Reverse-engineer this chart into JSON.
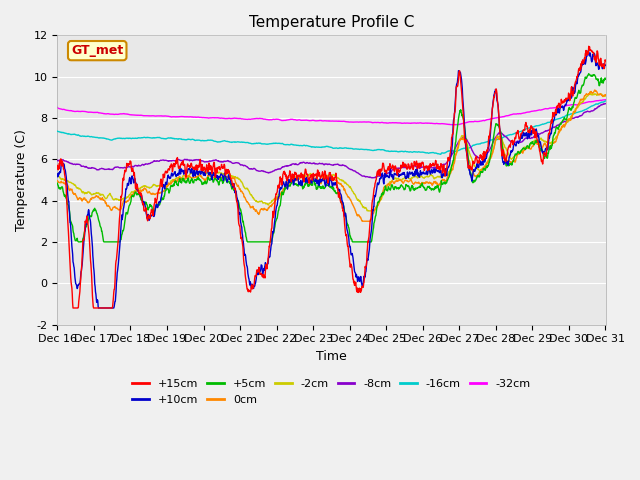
{
  "title": "Temperature Profile C",
  "xlabel": "Time",
  "ylabel": "Temperature (C)",
  "ylim": [
    -2,
    12
  ],
  "xlim_days": [
    16,
    31
  ],
  "x_tick_labels": [
    "Dec 16",
    "Dec 17",
    "Dec 18",
    "Dec 19",
    "Dec 20",
    "Dec 21",
    "Dec 22",
    "Dec 23",
    "Dec 24",
    "Dec 25",
    "Dec 26",
    "Dec 27",
    "Dec 28",
    "Dec 29",
    "Dec 30",
    "Dec 31"
  ],
  "series_colors": {
    "+15cm": "#ff0000",
    "+10cm": "#0000cc",
    "+5cm": "#00bb00",
    "0cm": "#ff8800",
    "-2cm": "#cccc00",
    "-8cm": "#8800cc",
    "-16cm": "#00cccc",
    "-32cm": "#ff00ff"
  },
  "legend_label": "GT_met",
  "legend_box_color": "#ffffcc",
  "legend_box_edge": "#cc8800",
  "plot_bg_color": "#e8e8e8",
  "fig_bg_color": "#f0f0f0",
  "title_fontsize": 11,
  "axis_label_fontsize": 9,
  "tick_label_fontsize": 8,
  "legend_fontsize": 8
}
